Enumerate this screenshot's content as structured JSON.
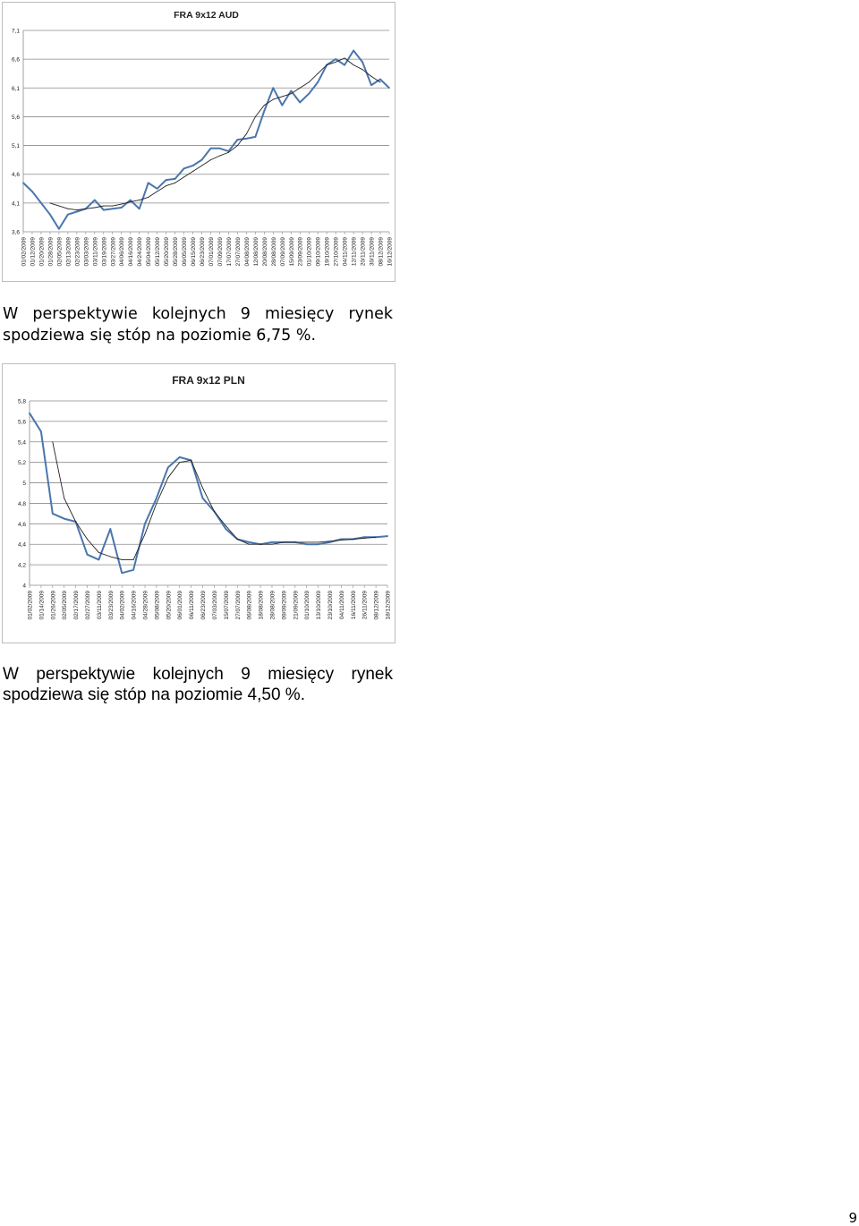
{
  "chart_data": [
    {
      "type": "line",
      "title": "FRA 9x12 AUD",
      "xlabel": "",
      "ylabel": "",
      "ylim": [
        3.6,
        7.1
      ],
      "yticks": [
        "7,1",
        "6,6",
        "6,1",
        "5,6",
        "5,1",
        "4,6",
        "4,1",
        "3,6"
      ],
      "ytick_values": [
        7.1,
        6.6,
        6.1,
        5.6,
        5.1,
        4.6,
        4.1,
        3.6
      ],
      "categories": [
        "01/02/2009",
        "01/12/2009",
        "01/20/2009",
        "01/28/2009",
        "02/05/2009",
        "02/13/2009",
        "02/23/2009",
        "03/03/2009",
        "03/11/2009",
        "03/19/2009",
        "03/27/2009",
        "04/06/2009",
        "04/16/2009",
        "04/24/2009",
        "05/04/2009",
        "05/12/2009",
        "05/20/2009",
        "05/28/2009",
        "06/05/2009",
        "06/15/2009",
        "06/23/2009",
        "07/01/2009",
        "07/09/2009",
        "17/07/2009",
        "27/07/2009",
        "04/08/2009",
        "12/08/2009",
        "20/08/2009",
        "28/08/2009",
        "07/09/2009",
        "15/09/2009",
        "23/09/2009",
        "01/10/2009",
        "09/10/2009",
        "19/10/2009",
        "27/10/2009",
        "04/11/2009",
        "12/11/2009",
        "20/11/2009",
        "30/11/2009",
        "08/12/2009",
        "16/12/2009"
      ],
      "series": [
        {
          "values": [
            4.45,
            4.3,
            4.1,
            3.9,
            3.65,
            3.9,
            3.95,
            4.0,
            4.15,
            3.98,
            4.0,
            4.02,
            4.15,
            4.0,
            4.45,
            4.35,
            4.5,
            4.52,
            4.7,
            4.75,
            4.85,
            5.05,
            5.05,
            5.0,
            5.2,
            5.22,
            5.25,
            5.7,
            6.1,
            5.8,
            6.05,
            5.85,
            6.0,
            6.2,
            6.5,
            6.6,
            6.5,
            6.75,
            6.55,
            6.15,
            6.25,
            6.1
          ],
          "color": "#4a76ae"
        },
        {
          "values": [
            null,
            null,
            null,
            4.1,
            4.05,
            4.0,
            3.98,
            4.0,
            4.02,
            4.05,
            4.05,
            4.08,
            4.12,
            4.15,
            4.2,
            4.3,
            4.4,
            4.45,
            4.55,
            4.65,
            4.75,
            4.85,
            4.92,
            4.98,
            5.1,
            5.3,
            5.6,
            5.8,
            5.9,
            5.95,
            6.0,
            6.1,
            6.2,
            6.35,
            6.5,
            6.55,
            6.62,
            6.5,
            6.42,
            6.3,
            6.2,
            null
          ],
          "color": "#222222"
        }
      ]
    },
    {
      "type": "line",
      "title": "FRA 9x12 PLN",
      "xlabel": "",
      "ylabel": "",
      "ylim": [
        4,
        5.8
      ],
      "yticks": [
        "5,8",
        "5,6",
        "5,4",
        "5,2",
        "5",
        "4,8",
        "4,6",
        "4,4",
        "4,2",
        "4"
      ],
      "ytick_values": [
        5.8,
        5.6,
        5.4,
        5.2,
        5.0,
        4.8,
        4.6,
        4.4,
        4.2,
        4.0
      ],
      "categories": [
        "01/02/2009",
        "01/14/2009",
        "01/26/2009",
        "02/05/2009",
        "02/17/2009",
        "02/27/2009",
        "03/11/2009",
        "03/23/2009",
        "04/02/2009",
        "04/16/2009",
        "04/28/2009",
        "05/08/2009",
        "05/20/2009",
        "06/01/2009",
        "06/11/2009",
        "06/23/2009",
        "07/03/2009",
        "15/07/2009",
        "27/07/2009",
        "06/08/2009",
        "18/08/2009",
        "28/08/2009",
        "09/09/2009",
        "21/09/2009",
        "01/10/2009",
        "13/10/2009",
        "23/10/2009",
        "04/11/2009",
        "16/11/2009",
        "26/11/2009",
        "08/12/2009",
        "18/12/2009"
      ],
      "series": [
        {
          "values": [
            5.68,
            5.5,
            4.7,
            4.65,
            4.62,
            4.3,
            4.25,
            4.55,
            4.12,
            4.15,
            4.6,
            4.85,
            5.15,
            5.25,
            5.22,
            4.85,
            4.72,
            4.55,
            4.45,
            4.42,
            4.4,
            4.42,
            4.42,
            4.42,
            4.4,
            4.4,
            4.42,
            4.45,
            4.45,
            4.47,
            4.47,
            4.48
          ],
          "color": "#4a76ae"
        },
        {
          "values": [
            null,
            null,
            5.4,
            4.85,
            4.62,
            4.45,
            4.32,
            4.28,
            4.25,
            4.25,
            4.5,
            4.8,
            5.05,
            5.2,
            5.22,
            4.95,
            4.72,
            4.58,
            4.45,
            4.4,
            4.4,
            4.4,
            4.42,
            4.42,
            4.42,
            4.42,
            4.43,
            4.44,
            4.45,
            4.46,
            4.47,
            null
          ],
          "color": "#222222"
        }
      ]
    }
  ],
  "text": {
    "para1_line1": "W perspektywie kolejnych 9 miesięcy rynek",
    "para1_line2": "spodziewa się  stóp na poziomie 6,75 %.",
    "para2_line1": "W perspektywie kolejnych 9 miesięcy rynek",
    "para2_line2": "spodziewa się stóp na poziomie 4,50 %.",
    "page_number": "9"
  }
}
